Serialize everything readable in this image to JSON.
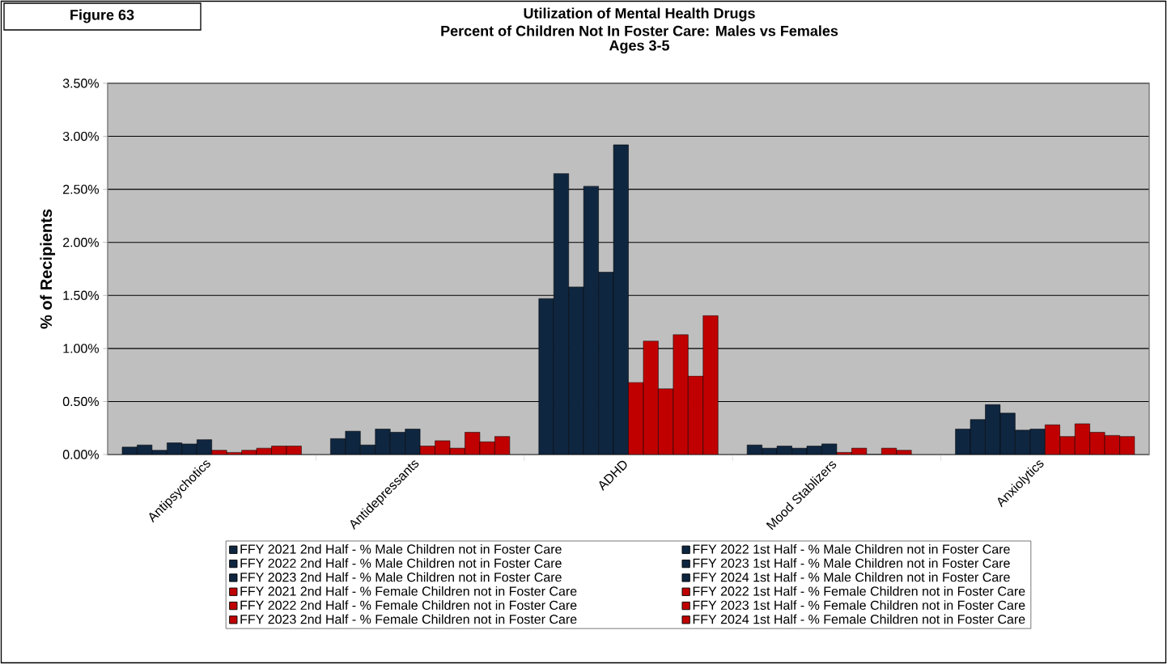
{
  "chart_data": {
    "type": "bar",
    "title": "Utilization of Mental Health Drugs",
    "subtitle": "Percent of Children Not In Foster Care: Males vs Females",
    "ylabel": "% of Recipients",
    "annotations": [
      "Figure 63",
      "Ages 3-5"
    ],
    "categories": [
      "Antipsychotics",
      "Antidepressants",
      "ADHD",
      "Mood Stablizers",
      "Anxiolytics"
    ],
    "series": [
      {
        "name": "FFY 2021 2nd Half - % Male Children not in Foster Care",
        "color": "#0f2640",
        "values": [
          0.07,
          0.15,
          1.47,
          0.09,
          0.24
        ]
      },
      {
        "name": "FFY 2022 1st Half - % Male Children not in Foster Care",
        "color": "#0f2640",
        "values": [
          0.09,
          0.22,
          2.65,
          0.06,
          0.33
        ]
      },
      {
        "name": "FFY 2022 2nd Half - % Male Children not in Foster Care",
        "color": "#0f2640",
        "values": [
          0.04,
          0.09,
          1.58,
          0.08,
          0.47
        ]
      },
      {
        "name": "FFY 2023 1st Half - % Male Children not in Foster Care",
        "color": "#0f2640",
        "values": [
          0.11,
          0.24,
          2.53,
          0.06,
          0.39
        ]
      },
      {
        "name": "FFY 2023 2nd Half - % Male Children not in Foster Care",
        "color": "#0f2640",
        "values": [
          0.1,
          0.21,
          1.72,
          0.08,
          0.23
        ]
      },
      {
        "name": "FFY 2024 1st Half - % Male Children not in Foster Care",
        "color": "#0f2640",
        "values": [
          0.14,
          0.24,
          2.92,
          0.1,
          0.24
        ]
      },
      {
        "name": "FFY 2021 2nd Half - % Female Children not in Foster Care",
        "color": "#c00000",
        "values": [
          0.04,
          0.08,
          0.68,
          0.02,
          0.28
        ]
      },
      {
        "name": "FFY 2022 1st Half - % Female Children not in Foster Care",
        "color": "#c00000",
        "values": [
          0.02,
          0.13,
          1.07,
          0.06,
          0.17
        ]
      },
      {
        "name": "FFY 2022 2nd Half - % Female Children not in Foster Care",
        "color": "#c00000",
        "values": [
          0.04,
          0.06,
          0.62,
          0,
          0.29
        ]
      },
      {
        "name": "FFY 2023 1st Half - % Female Children not in Foster Care",
        "color": "#c00000",
        "values": [
          0.06,
          0.21,
          1.13,
          0.06,
          0.21
        ]
      },
      {
        "name": "FFY 2023 2nd Half - % Female Children not in Foster Care",
        "color": "#c00000",
        "values": [
          0.08,
          0.12,
          0.74,
          0.04,
          0.18
        ]
      },
      {
        "name": "FFY 2024 1st Half - % Female Children not in Foster Care",
        "color": "#c00000",
        "values": [
          0.08,
          0.17,
          1.31,
          null,
          0.17
        ]
      }
    ],
    "ylim": [
      0,
      3.5
    ],
    "yticks": [
      {
        "value": 0,
        "label": "0.00%"
      },
      {
        "value": 0.5,
        "label": "0.50%"
      },
      {
        "value": 1,
        "label": "1.00%"
      },
      {
        "value": 1.5,
        "label": "1.50%"
      },
      {
        "value": 2,
        "label": "2.00%"
      },
      {
        "value": 2.5,
        "label": "2.50%"
      },
      {
        "value": 3,
        "label": "3.00%"
      },
      {
        "value": 3.5,
        "label": "3.50%"
      }
    ],
    "grid": "y",
    "legend": "bottom"
  }
}
